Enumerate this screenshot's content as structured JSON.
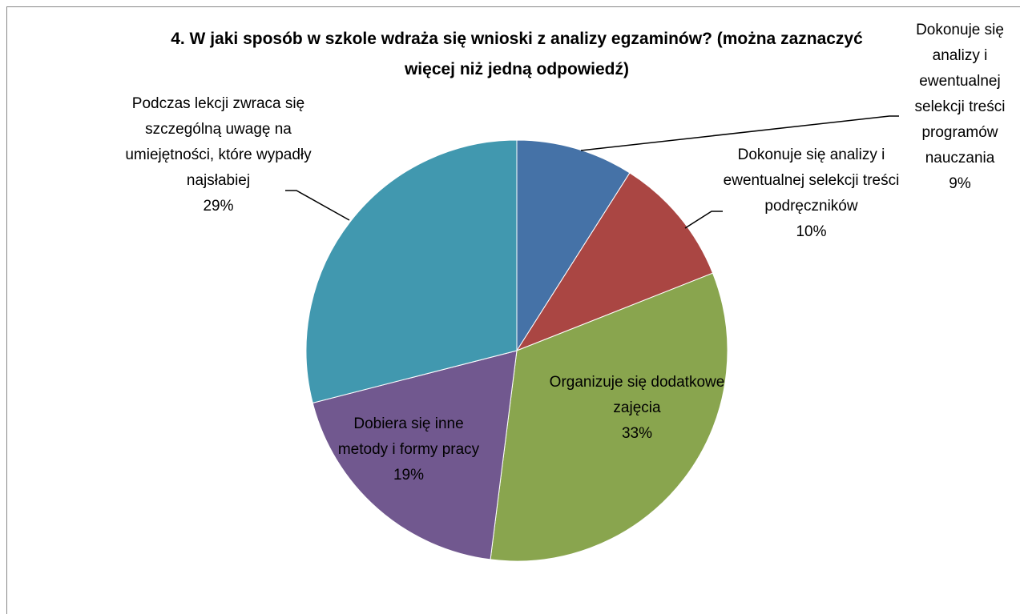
{
  "chart_data": {
    "type": "pie",
    "title": "4. W jaki sposób w szkole wdraża się wnioski z analizy egzaminów? (można zaznaczyć więcej niż jedną odpowiedź)",
    "categories": [
      "Dokonuje się analizy i ewentualnej selekcji treści programów nauczania",
      "Dokonuje się analizy i ewentualnej selekcji treści podręczników",
      "Organizuje się dodatkowe zajęcia",
      "Dobiera się inne metody i formy pracy",
      "Podczas lekcji zwraca się szczególną uwagę na umiejętności, które wypadły najsłabiej"
    ],
    "values": [
      9,
      10,
      33,
      19,
      29
    ],
    "value_labels": [
      "9%",
      "10%",
      "33%",
      "19%",
      "29%"
    ],
    "colors": [
      "#4572a7",
      "#aa4643",
      "#89a54e",
      "#71588f",
      "#4198af"
    ]
  }
}
